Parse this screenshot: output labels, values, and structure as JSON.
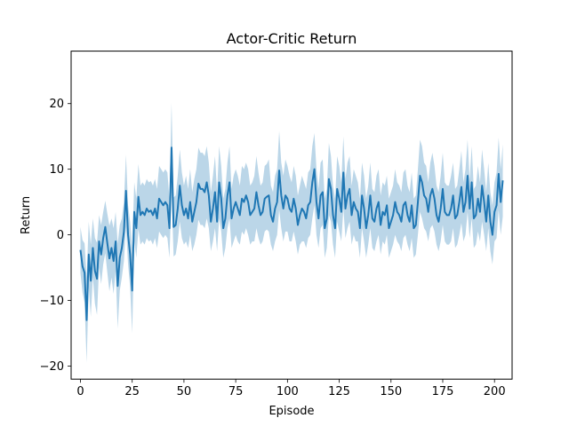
{
  "chart_data": {
    "type": "line",
    "title": "Actor-Critic Return",
    "xlabel": "Episode",
    "ylabel": "Return",
    "xlim": [
      -4.5,
      208.5
    ],
    "ylim": [
      -22,
      28
    ],
    "xticks": [
      0,
      25,
      50,
      75,
      100,
      125,
      150,
      175,
      200
    ],
    "yticks": [
      -20,
      -10,
      0,
      10,
      20
    ],
    "xtick_labels": [
      "0",
      "25",
      "50",
      "75",
      "100",
      "125",
      "150",
      "175",
      "200"
    ],
    "ytick_labels": [
      "−20",
      "−10",
      "0",
      "10",
      "20"
    ],
    "grid": false,
    "colors": {
      "line": "#1f77b4",
      "band": "#1f77b4",
      "band_opacity": 0.3
    },
    "series": [
      {
        "x_start": 0,
        "x_step": 1,
        "values": [
          -2.3,
          -4.8,
          -5.8,
          -13.0,
          -3.0,
          -7.0,
          -2.0,
          -5.5,
          -6.7,
          -1.0,
          -3.0,
          -0.5,
          1.2,
          -1.3,
          -3.6,
          -2.0,
          -4.0,
          -1.0,
          -7.8,
          -3.5,
          -2.0,
          0.5,
          6.7,
          0.0,
          -3.0,
          -8.5,
          3.5,
          1.0,
          5.8,
          3.0,
          3.5,
          3.0,
          4.0,
          3.5,
          3.7,
          3.0,
          4.0,
          2.5,
          5.5,
          5.0,
          4.5,
          5.0,
          4.5,
          1.0,
          13.3,
          1.2,
          1.5,
          4.0,
          7.5,
          4.5,
          3.0,
          4.0,
          2.5,
          5.0,
          2.0,
          3.5,
          5.0,
          7.8,
          7.0,
          7.0,
          6.5,
          8.0,
          6.0,
          2.0,
          4.0,
          6.5,
          2.0,
          8.0,
          5.5,
          1.0,
          2.5,
          6.0,
          8.0,
          2.5,
          4.0,
          5.0,
          4.0,
          3.0,
          5.5,
          5.0,
          6.0,
          5.0,
          3.0,
          3.5,
          4.0,
          6.5,
          4.5,
          3.0,
          3.5,
          5.5,
          5.8,
          6.0,
          3.0,
          2.0,
          4.0,
          5.0,
          9.8,
          6.0,
          4.0,
          6.0,
          5.5,
          4.0,
          3.5,
          5.5,
          4.0,
          1.5,
          3.0,
          4.0,
          3.5,
          2.5,
          4.5,
          5.0,
          8.0,
          10.0,
          5.0,
          2.5,
          6.0,
          6.5,
          1.0,
          2.5,
          8.5,
          7.0,
          3.0,
          1.0,
          7.0,
          5.5,
          3.5,
          9.5,
          4.0,
          6.0,
          7.0,
          3.0,
          5.0,
          4.0,
          3.5,
          1.0,
          6.0,
          4.0,
          1.0,
          3.0,
          6.0,
          2.5,
          2.0,
          4.0,
          5.0,
          1.5,
          3.5,
          3.0,
          4.5,
          1.0,
          2.0,
          3.0,
          5.0,
          3.5,
          3.0,
          2.0,
          4.5,
          5.0,
          3.0,
          2.0,
          4.5,
          1.0,
          1.5,
          5.0,
          9.0,
          8.0,
          6.0,
          5.5,
          3.5,
          6.0,
          7.0,
          5.5,
          3.0,
          2.0,
          4.0,
          7.0,
          3.5,
          3.0,
          3.0,
          4.0,
          6.0,
          2.5,
          3.0,
          5.0,
          7.3,
          3.5,
          5.0,
          9.0,
          4.0,
          8.0,
          2.5,
          3.0,
          5.5,
          3.5,
          7.5,
          5.0,
          2.0,
          6.0,
          2.0,
          0.0,
          3.5,
          4.5,
          9.3,
          5.0,
          8.3
        ],
        "band_half_width": [
          3.5,
          4.0,
          4.5,
          6.5,
          5.0,
          5.5,
          4.5,
          5.0,
          5.5,
          4.0,
          4.5,
          4.0,
          4.0,
          4.5,
          5.0,
          4.5,
          5.0,
          4.5,
          6.5,
          5.0,
          4.5,
          4.5,
          5.5,
          4.5,
          5.0,
          6.5,
          4.5,
          4.5,
          5.0,
          4.5,
          4.5,
          4.5,
          4.5,
          4.5,
          4.5,
          4.5,
          4.5,
          4.5,
          5.0,
          5.0,
          5.0,
          5.0,
          5.0,
          4.5,
          6.8,
          4.5,
          4.5,
          5.0,
          5.5,
          5.0,
          4.5,
          5.0,
          4.5,
          5.0,
          4.5,
          5.0,
          5.0,
          5.5,
          5.5,
          5.5,
          5.5,
          5.5,
          5.0,
          4.5,
          5.0,
          5.5,
          4.5,
          5.5,
          5.0,
          4.5,
          4.5,
          5.0,
          5.5,
          4.5,
          5.0,
          5.0,
          5.0,
          4.5,
          5.0,
          5.0,
          5.0,
          5.0,
          4.5,
          4.5,
          5.0,
          5.5,
          5.0,
          4.5,
          4.5,
          5.0,
          5.0,
          5.5,
          4.5,
          4.5,
          5.0,
          5.0,
          6.0,
          5.0,
          5.0,
          5.5,
          5.0,
          5.0,
          4.5,
          5.0,
          5.0,
          4.5,
          4.5,
          5.0,
          4.5,
          4.5,
          5.0,
          5.0,
          5.5,
          5.5,
          5.0,
          4.5,
          5.0,
          5.0,
          4.5,
          4.5,
          5.5,
          5.0,
          4.5,
          4.5,
          5.0,
          5.0,
          4.5,
          5.5,
          4.5,
          5.0,
          5.0,
          4.5,
          5.0,
          5.0,
          4.5,
          4.5,
          5.0,
          5.0,
          4.5,
          4.5,
          5.0,
          4.5,
          4.5,
          5.0,
          5.0,
          4.5,
          4.5,
          4.5,
          4.5,
          4.5,
          4.5,
          4.5,
          5.0,
          4.5,
          4.5,
          4.5,
          5.0,
          5.0,
          4.5,
          4.5,
          5.0,
          4.5,
          4.5,
          5.0,
          5.5,
          5.5,
          5.0,
          5.0,
          4.5,
          5.0,
          5.5,
          5.0,
          4.5,
          4.5,
          5.0,
          5.5,
          4.5,
          4.5,
          4.5,
          5.0,
          5.0,
          4.5,
          4.5,
          5.0,
          5.5,
          4.5,
          5.0,
          5.5,
          4.5,
          5.5,
          4.5,
          4.5,
          5.0,
          4.5,
          5.5,
          5.0,
          4.5,
          5.0,
          4.5,
          4.5,
          4.5,
          5.0,
          5.5,
          5.0,
          5.5
        ]
      }
    ]
  }
}
